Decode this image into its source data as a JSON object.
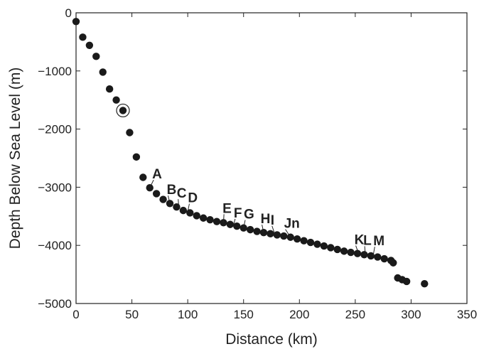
{
  "chart_data": {
    "type": "scatter",
    "xlabel": "Distance (km)",
    "ylabel": "Depth Below Sea Level (m)",
    "xlim": [
      0,
      350
    ],
    "ylim": [
      -5000,
      0
    ],
    "xticks": [
      0,
      50,
      100,
      150,
      200,
      250,
      300,
      350
    ],
    "yticks": [
      0,
      -1000,
      -2000,
      -3000,
      -4000,
      -5000
    ],
    "grid": false,
    "legend": "none",
    "marker_color": "#1a1a1a",
    "points": [
      [
        0,
        -150
      ],
      [
        6,
        -420
      ],
      [
        12,
        -560
      ],
      [
        18,
        -750
      ],
      [
        24,
        -1020
      ],
      [
        30,
        -1310
      ],
      [
        36,
        -1500
      ],
      [
        42,
        -1680
      ],
      [
        48,
        -2060
      ],
      [
        54,
        -2480
      ],
      [
        60,
        -2830
      ],
      [
        66,
        -3010
      ],
      [
        72,
        -3110
      ],
      [
        78,
        -3210
      ],
      [
        84,
        -3280
      ],
      [
        90,
        -3340
      ],
      [
        96,
        -3400
      ],
      [
        102,
        -3440
      ],
      [
        108,
        -3490
      ],
      [
        114,
        -3530
      ],
      [
        120,
        -3560
      ],
      [
        126,
        -3590
      ],
      [
        132,
        -3610
      ],
      [
        138,
        -3640
      ],
      [
        144,
        -3670
      ],
      [
        150,
        -3700
      ],
      [
        156,
        -3730
      ],
      [
        162,
        -3760
      ],
      [
        168,
        -3780
      ],
      [
        174,
        -3800
      ],
      [
        180,
        -3820
      ],
      [
        186,
        -3840
      ],
      [
        192,
        -3860
      ],
      [
        198,
        -3890
      ],
      [
        204,
        -3920
      ],
      [
        210,
        -3950
      ],
      [
        216,
        -3980
      ],
      [
        222,
        -4010
      ],
      [
        228,
        -4040
      ],
      [
        234,
        -4070
      ],
      [
        240,
        -4100
      ],
      [
        246,
        -4120
      ],
      [
        252,
        -4140
      ],
      [
        258,
        -4160
      ],
      [
        264,
        -4180
      ],
      [
        270,
        -4200
      ],
      [
        276,
        -4230
      ],
      [
        282,
        -4260
      ],
      [
        284,
        -4300
      ],
      [
        288,
        -4560
      ],
      [
        292,
        -4590
      ],
      [
        296,
        -4620
      ],
      [
        312,
        -4660
      ]
    ],
    "highlighted_point": [
      42,
      -1680
    ],
    "annotations": [
      {
        "label": "A",
        "point": [
          66,
          -3010
        ],
        "text": [
          72,
          -2850
        ]
      },
      {
        "label": "B",
        "point": [
          84,
          -3280
        ],
        "text": [
          85,
          -3120
        ]
      },
      {
        "label": "C",
        "point": [
          92,
          -3350
        ],
        "text": [
          94,
          -3180
        ]
      },
      {
        "label": "D",
        "point": [
          100,
          -3420
        ],
        "text": [
          104,
          -3260
        ]
      },
      {
        "label": "E",
        "point": [
          132,
          -3610
        ],
        "text": [
          135,
          -3440
        ]
      },
      {
        "label": "F",
        "point": [
          141,
          -3650
        ],
        "text": [
          145,
          -3520
        ]
      },
      {
        "label": "G",
        "point": [
          150,
          -3700
        ],
        "text": [
          154,
          -3540
        ]
      },
      {
        "label": "H",
        "point": [
          168,
          -3780
        ],
        "text": [
          169,
          -3620
        ]
      },
      {
        "label": "I",
        "point": [
          178,
          -3810
        ],
        "text": [
          178,
          -3640
        ]
      },
      {
        "label": "Jn",
        "point": [
          192,
          -3860
        ],
        "text": [
          190,
          -3700
        ]
      },
      {
        "label": "K",
        "point": [
          253,
          -4140
        ],
        "text": [
          253,
          -3980
        ]
      },
      {
        "label": "L",
        "point": [
          259,
          -4160
        ],
        "text": [
          261,
          -3990
        ]
      },
      {
        "label": "M",
        "point": [
          266,
          -4180
        ],
        "text": [
          270,
          -4000
        ]
      }
    ]
  }
}
